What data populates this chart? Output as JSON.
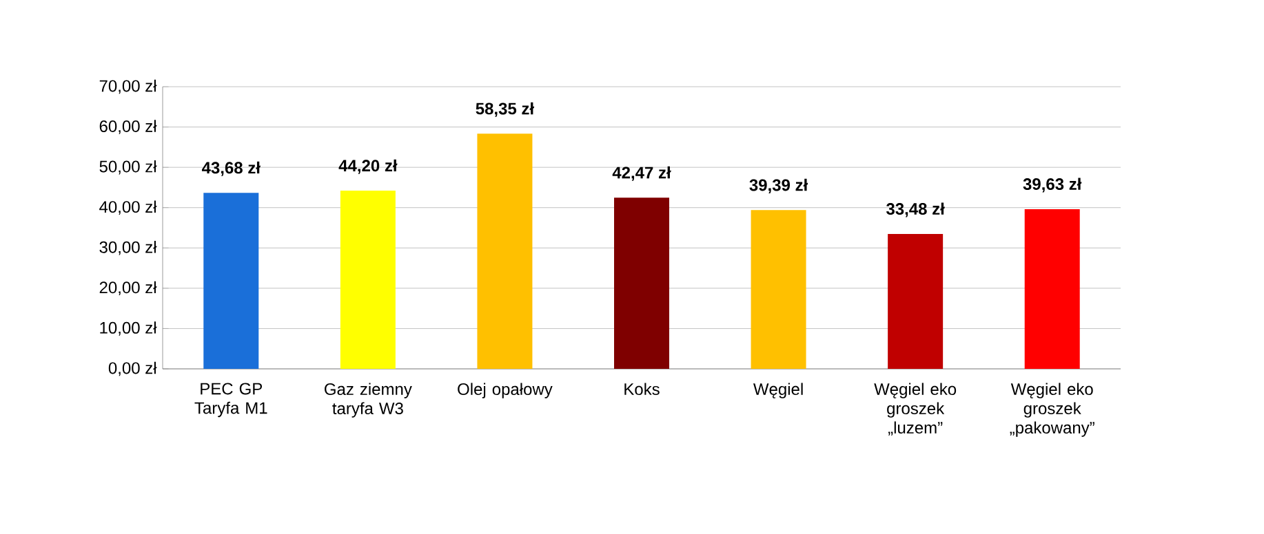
{
  "chart_data": {
    "type": "bar",
    "categories": [
      "PEC GP Taryfa M1",
      "Gaz ziemny taryfa W3",
      "Olej opałowy",
      "Koks",
      "Węgiel",
      "Węgiel eko groszek „luzem”",
      "Węgiel eko groszek „pakowany”"
    ],
    "values": [
      43.68,
      44.2,
      58.35,
      42.47,
      39.39,
      33.48,
      39.63
    ],
    "value_labels": [
      "43,68 zł",
      "44,20 zł",
      "58,35 zł",
      "42,47 zł",
      "39,39 zł",
      "33,48 zł",
      "39,63 zł"
    ],
    "colors": [
      "#1a6fd9",
      "#ffff00",
      "#ffc000",
      "#7f0000",
      "#ffc000",
      "#c00000",
      "#ff0000"
    ],
    "ylim": [
      0,
      70
    ],
    "yticks": [
      {
        "value": 0,
        "label": "0,00 zł"
      },
      {
        "value": 10,
        "label": "10,00 zł"
      },
      {
        "value": 20,
        "label": "20,00 zł"
      },
      {
        "value": 30,
        "label": "30,00 zł"
      },
      {
        "value": 40,
        "label": "40,00 zł"
      },
      {
        "value": 50,
        "label": "50,00 zł"
      },
      {
        "value": 60,
        "label": "60,00 zł"
      },
      {
        "value": 70,
        "label": "70,00 zł"
      }
    ],
    "grid": "y"
  }
}
